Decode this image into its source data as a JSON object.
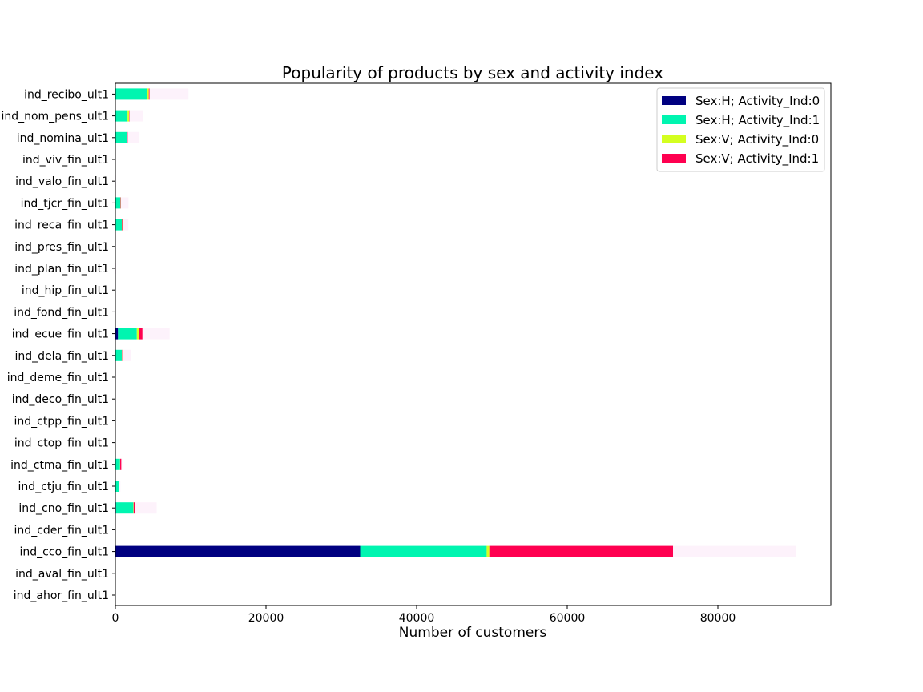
{
  "chart_data": {
    "type": "bar",
    "orientation": "horizontal",
    "stacked": true,
    "title": "Popularity of products by sex and activity index",
    "xlabel": "Number of customers",
    "ylabel": "",
    "xlim": [
      0,
      95000
    ],
    "xticks": [
      0,
      20000,
      40000,
      60000,
      80000
    ],
    "xtick_labels": [
      "0",
      "20000",
      "40000",
      "60000",
      "80000"
    ],
    "grid": false,
    "legend_position": "top-right",
    "categories": [
      "ind_ahor_fin_ult1",
      "ind_aval_fin_ult1",
      "ind_cco_fin_ult1",
      "ind_cder_fin_ult1",
      "ind_cno_fin_ult1",
      "ind_ctju_fin_ult1",
      "ind_ctma_fin_ult1",
      "ind_ctop_fin_ult1",
      "ind_ctpp_fin_ult1",
      "ind_deco_fin_ult1",
      "ind_deme_fin_ult1",
      "ind_dela_fin_ult1",
      "ind_ecue_fin_ult1",
      "ind_fond_fin_ult1",
      "ind_hip_fin_ult1",
      "ind_plan_fin_ult1",
      "ind_pres_fin_ult1",
      "ind_reca_fin_ult1",
      "ind_tjcr_fin_ult1",
      "ind_valo_fin_ult1",
      "ind_viv_fin_ult1",
      "ind_nomina_ult1",
      "ind_nom_pens_ult1",
      "ind_recibo_ult1"
    ],
    "series": [
      {
        "name": "Sex:H; Activity_Ind:0",
        "color": "#000080",
        "values": [
          0,
          0,
          32500,
          0,
          80,
          0,
          20,
          0,
          0,
          0,
          0,
          50,
          350,
          0,
          0,
          0,
          0,
          60,
          20,
          0,
          0,
          20,
          20,
          40
        ]
      },
      {
        "name": "Sex:H; Activity_Ind:1",
        "color": "#00f5b0",
        "values": [
          5,
          5,
          16800,
          0,
          2300,
          500,
          600,
          10,
          10,
          5,
          5,
          800,
          2500,
          10,
          10,
          30,
          10,
          800,
          650,
          10,
          5,
          1500,
          1600,
          4200
        ]
      },
      {
        "name": "Sex:V; Activity_Ind:0",
        "color": "#d4ff20",
        "values": [
          0,
          0,
          350,
          0,
          50,
          0,
          20,
          0,
          0,
          0,
          0,
          30,
          250,
          0,
          0,
          0,
          0,
          30,
          20,
          0,
          0,
          40,
          200,
          200
        ]
      },
      {
        "name": "Sex:V; Activity_Ind:1",
        "color": "#ff0050",
        "values": [
          0,
          0,
          24400,
          0,
          150,
          20,
          150,
          0,
          0,
          0,
          0,
          50,
          500,
          0,
          0,
          0,
          0,
          80,
          50,
          0,
          0,
          80,
          60,
          100
        ]
      },
      {
        "name": "",
        "color": "#fdf2fb",
        "values": [
          0,
          0,
          16300,
          0,
          2900,
          150,
          100,
          40,
          40,
          10,
          10,
          1100,
          3600,
          50,
          40,
          80,
          30,
          750,
          1000,
          80,
          20,
          1560,
          1820,
          5160
        ]
      }
    ]
  }
}
